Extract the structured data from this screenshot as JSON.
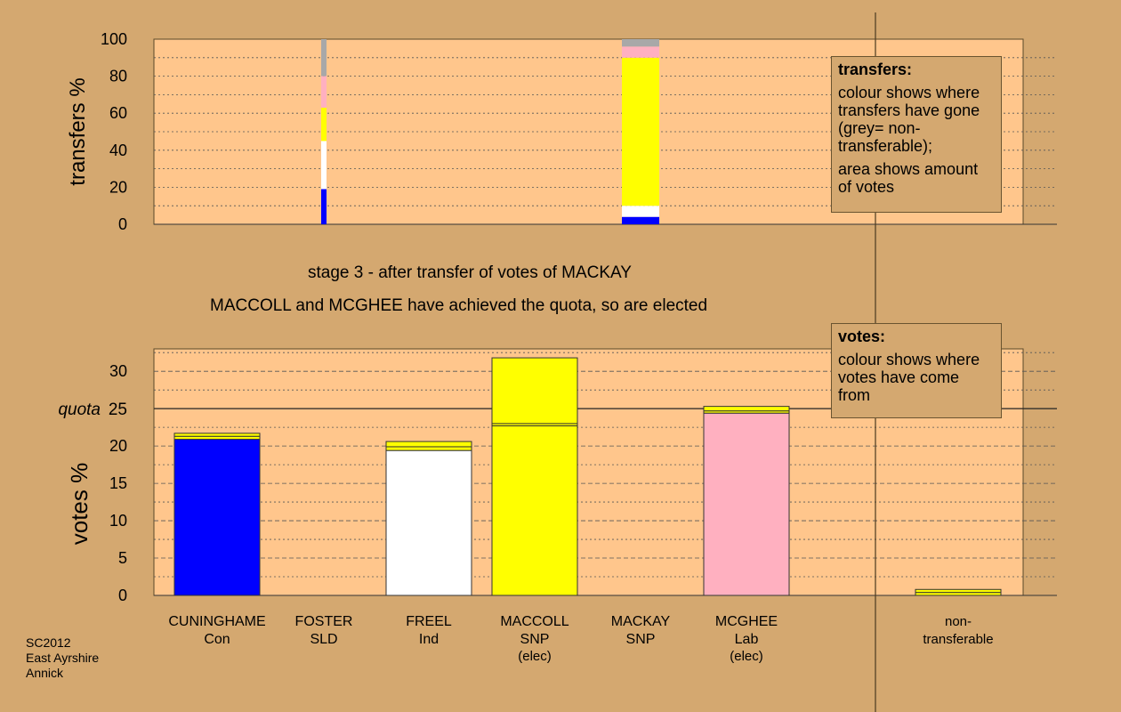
{
  "caption": {
    "stage": "stage 3 - after transfer of votes of MACKAY",
    "status": "MACCOLL and MCGHEE have achieved the quota, so are elected"
  },
  "legend_transfers": {
    "title": "transfers:",
    "line1": "colour shows where transfers have gone (grey= non-transferable);",
    "line2": "area shows amount of votes"
  },
  "legend_votes": {
    "title": "votes:",
    "line1": "colour shows where votes have come from"
  },
  "footer": {
    "line1": "SC2012",
    "line2": "East Ayrshire",
    "line3": "Annick"
  },
  "colors": {
    "background": "#d4a870",
    "plot": "#ffc68c",
    "Con": "#0000ff",
    "Ind": "#ffffff",
    "SNP": "#ffff00",
    "Lab": "#ffb0c0",
    "nontransferable": "#a8a8a8"
  },
  "chart_data": [
    {
      "type": "bar",
      "stacked": true,
      "ylabel": "transfers %",
      "ylim": [
        0,
        100
      ],
      "yticks": [
        0,
        20,
        40,
        60,
        80,
        100
      ],
      "grid": true,
      "bars": [
        {
          "candidate": "FOSTER",
          "segments": [
            {
              "to": "CUNINGHAME",
              "color": "#0000ff",
              "value": 19
            },
            {
              "to": "FREEL",
              "color": "#ffffff",
              "value": 26
            },
            {
              "to": "MACCOLL",
              "color": "#ffff00",
              "value": 18
            },
            {
              "to": "MCGHEE",
              "color": "#ffb0c0",
              "value": 17
            },
            {
              "to": "non-transferable",
              "color": "#a8a8a8",
              "value": 20
            }
          ]
        },
        {
          "candidate": "MACKAY",
          "segments": [
            {
              "to": "CUNINGHAME",
              "color": "#0000ff",
              "value": 4
            },
            {
              "to": "FREEL",
              "color": "#ffffff",
              "value": 6
            },
            {
              "to": "MACCOLL",
              "color": "#ffff00",
              "value": 80
            },
            {
              "to": "MCGHEE",
              "color": "#ffb0c0",
              "value": 6
            },
            {
              "to": "non-transferable",
              "color": "#a8a8a8",
              "value": 4
            }
          ]
        }
      ]
    },
    {
      "type": "bar",
      "stacked": true,
      "ylabel": "votes %",
      "ylim": [
        0,
        33
      ],
      "yticks": [
        0,
        5,
        10,
        15,
        20,
        25,
        30
      ],
      "quota": 25,
      "quota_label": "quota",
      "grid": true,
      "categories": [
        {
          "name": "CUNINGHAME",
          "party": "Con",
          "note": ""
        },
        {
          "name": "FOSTER",
          "party": "SLD",
          "note": ""
        },
        {
          "name": "FREEL",
          "party": "Ind",
          "note": ""
        },
        {
          "name": "MACCOLL",
          "party": "SNP",
          "note": "(elec)"
        },
        {
          "name": "MACKAY",
          "party": "SNP",
          "note": ""
        },
        {
          "name": "MCGHEE",
          "party": "Lab",
          "note": "(elec)"
        },
        {
          "name": "non-",
          "party": "transferable",
          "note": ""
        }
      ],
      "bars": [
        {
          "candidate": "CUNINGHAME",
          "segments": [
            {
              "from": "first preferences",
              "color": "#0000ff",
              "value": 20.9
            },
            {
              "from": "FOSTER",
              "color": "#ffff00",
              "value": 0.4
            },
            {
              "from": "MACKAY",
              "color": "#ffff00",
              "value": 0.4
            }
          ]
        },
        {
          "candidate": "FOSTER",
          "segments": []
        },
        {
          "candidate": "FREEL",
          "segments": [
            {
              "from": "first preferences",
              "color": "#ffffff",
              "value": 19.4
            },
            {
              "from": "FOSTER",
              "color": "#ffff00",
              "value": 0.5
            },
            {
              "from": "MACKAY",
              "color": "#ffff00",
              "value": 0.7
            }
          ]
        },
        {
          "candidate": "MACCOLL",
          "segments": [
            {
              "from": "first preferences",
              "color": "#ffff00",
              "value": 22.7
            },
            {
              "from": "FOSTER",
              "color": "#ffff00",
              "value": 0.3
            },
            {
              "from": "MACKAY",
              "color": "#ffff00",
              "value": 8.8
            }
          ]
        },
        {
          "candidate": "MACKAY",
          "segments": []
        },
        {
          "candidate": "MCGHEE",
          "segments": [
            {
              "from": "first preferences",
              "color": "#ffb0c0",
              "value": 24.4
            },
            {
              "from": "FOSTER",
              "color": "#ffff00",
              "value": 0.3
            },
            {
              "from": "MACKAY",
              "color": "#ffff00",
              "value": 0.6
            }
          ]
        },
        {
          "candidate": "non-transferable",
          "segments": [
            {
              "from": "FOSTER",
              "color": "#ffff00",
              "value": 0.4
            },
            {
              "from": "MACKAY",
              "color": "#ffff00",
              "value": 0.4
            }
          ]
        }
      ]
    }
  ]
}
